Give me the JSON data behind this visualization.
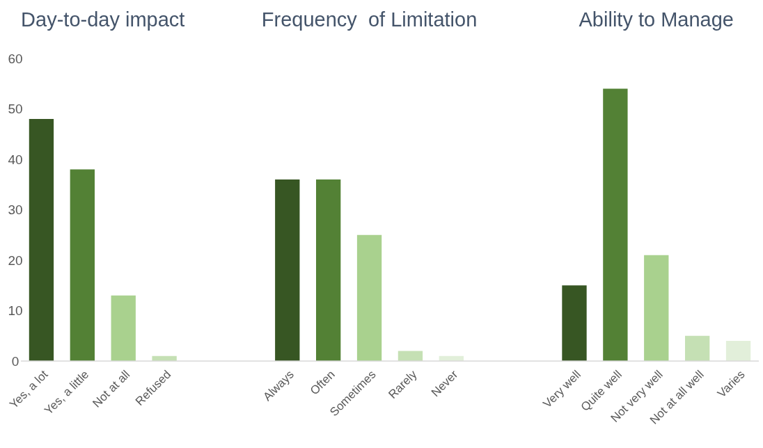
{
  "chart_data": {
    "type": "bar",
    "categories": [
      "Yes, a lot",
      "Yes, a little",
      "Not at all",
      "Refused",
      null,
      null,
      "Always",
      "Often",
      "Sometimes",
      "Rarely",
      "Never",
      null,
      null,
      "Very well",
      "Quite well",
      "Not very well",
      "Not at all well",
      "Varies"
    ],
    "values": [
      48,
      38,
      13,
      1,
      null,
      null,
      36,
      36,
      25,
      2,
      1,
      null,
      null,
      15,
      54,
      21,
      5,
      4
    ],
    "colors": [
      "#375623",
      "#538135",
      "#a9d18e",
      "#c5e0b4",
      null,
      null,
      "#375623",
      "#538135",
      "#a9d18e",
      "#c5e0b4",
      "#e2efda",
      null,
      null,
      "#375623",
      "#538135",
      "#a9d18e",
      "#c5e0b4",
      "#e2efda"
    ],
    "ylim": [
      0,
      60
    ],
    "yticks": [
      0,
      10,
      20,
      30,
      40,
      50,
      60
    ],
    "grid": false,
    "annotations": [
      "Day-to-day impact",
      "Frequency  of Limitation",
      "Ability to Manage"
    ]
  }
}
